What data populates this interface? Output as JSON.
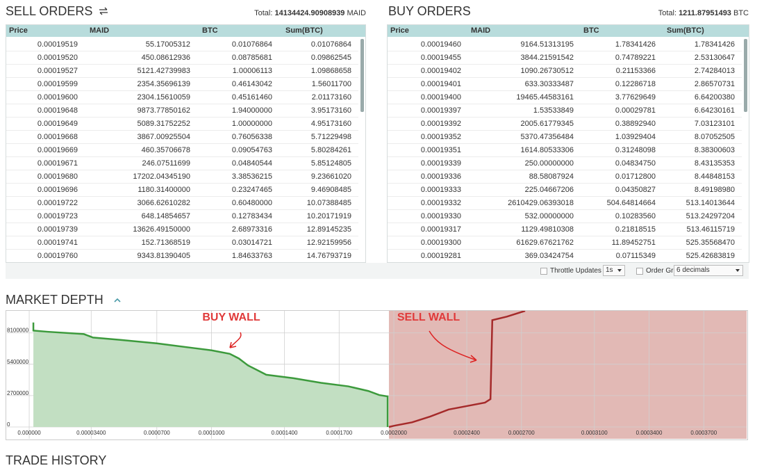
{
  "sell_orders": {
    "title": "SELL ORDERS",
    "total": {
      "label": "Total:",
      "value": "14134424.90908939",
      "unit": "MAID"
    },
    "columns": [
      "Price",
      "MAID",
      "BTC",
      "Sum(BTC)"
    ],
    "rows": [
      [
        "0.00019519",
        "55.17005312",
        "0.01076864",
        "0.01076864"
      ],
      [
        "0.00019520",
        "450.08612936",
        "0.08785681",
        "0.09862545"
      ],
      [
        "0.00019527",
        "5121.42739983",
        "1.00006113",
        "1.09868658"
      ],
      [
        "0.00019599",
        "2354.35696139",
        "0.46143042",
        "1.56011700"
      ],
      [
        "0.00019600",
        "2304.15610059",
        "0.45161460",
        "2.01173160"
      ],
      [
        "0.00019648",
        "9873.77850162",
        "1.94000000",
        "3.95173160"
      ],
      [
        "0.00019649",
        "5089.31752252",
        "1.00000000",
        "4.95173160"
      ],
      [
        "0.00019668",
        "3867.00925504",
        "0.76056338",
        "5.71229498"
      ],
      [
        "0.00019669",
        "460.35706678",
        "0.09054763",
        "5.80284261"
      ],
      [
        "0.00019671",
        "246.07511699",
        "0.04840544",
        "5.85124805"
      ],
      [
        "0.00019680",
        "17202.04345190",
        "3.38536215",
        "9.23661020"
      ],
      [
        "0.00019696",
        "1180.31400000",
        "0.23247465",
        "9.46908485"
      ],
      [
        "0.00019722",
        "3066.62610282",
        "0.60480000",
        "10.07388485"
      ],
      [
        "0.00019723",
        "648.14854657",
        "0.12783434",
        "10.20171919"
      ],
      [
        "0.00019739",
        "13626.49150000",
        "2.68973316",
        "12.89145235"
      ],
      [
        "0.00019741",
        "152.71368519",
        "0.03014721",
        "12.92159956"
      ],
      [
        "0.00019760",
        "9343.81390405",
        "1.84633763",
        "14.76793719"
      ]
    ]
  },
  "buy_orders": {
    "title": "BUY ORDERS",
    "total": {
      "label": "Total:",
      "value": "1211.87951493",
      "unit": "BTC"
    },
    "columns": [
      "Price",
      "MAID",
      "BTC",
      "Sum(BTC)"
    ],
    "rows": [
      [
        "0.00019460",
        "9164.51313195",
        "1.78341426",
        "1.78341426"
      ],
      [
        "0.00019455",
        "3844.21591542",
        "0.74789221",
        "2.53130647"
      ],
      [
        "0.00019402",
        "1090.26730512",
        "0.21153366",
        "2.74284013"
      ],
      [
        "0.00019401",
        "633.30333487",
        "0.12286718",
        "2.86570731"
      ],
      [
        "0.00019400",
        "19465.44583161",
        "3.77629649",
        "6.64200380"
      ],
      [
        "0.00019397",
        "1.53533849",
        "0.00029781",
        "6.64230161"
      ],
      [
        "0.00019392",
        "2005.61779345",
        "0.38892940",
        "7.03123101"
      ],
      [
        "0.00019352",
        "5370.47356484",
        "1.03929404",
        "8.07052505"
      ],
      [
        "0.00019351",
        "1614.80533306",
        "0.31248098",
        "8.38300603"
      ],
      [
        "0.00019339",
        "250.00000000",
        "0.04834750",
        "8.43135353"
      ],
      [
        "0.00019336",
        "88.58087924",
        "0.01712800",
        "8.44848153"
      ],
      [
        "0.00019333",
        "225.04667206",
        "0.04350827",
        "8.49198980"
      ],
      [
        "0.00019332",
        "2610429.06393018",
        "504.64814664",
        "513.14013644"
      ],
      [
        "0.00019330",
        "532.00000000",
        "0.10283560",
        "513.24297204"
      ],
      [
        "0.00019317",
        "1129.49810308",
        "0.21818515",
        "513.46115719"
      ],
      [
        "0.00019300",
        "61629.67621762",
        "11.89452751",
        "525.35568470"
      ],
      [
        "0.00019281",
        "369.03424754",
        "0.07115349",
        "525.42683819"
      ]
    ]
  },
  "controls": {
    "throttle_label": "Throttle Updates",
    "throttle_value": "1s",
    "grouping_label": "Order Grouping",
    "grouping_value": "6 decimals"
  },
  "chart_data": {
    "type": "area",
    "title": "MARKET DEPTH",
    "annotations": [
      "BUY WALL",
      "SELL WALL"
    ],
    "xlim": [
      -1.22e-05,
      0.0003935
    ],
    "ylim": [
      0,
      10000000
    ],
    "xticks": [
      {
        "value": 0,
        "label": "0.000000"
      },
      {
        "value": 3.4e-05,
        "label": "0.00003400"
      },
      {
        "value": 7e-05,
        "label": "0.0000700"
      },
      {
        "value": 0.0001,
        "label": "0.0001000"
      },
      {
        "value": 0.00014,
        "label": "0.0001400"
      },
      {
        "value": 0.00017,
        "label": "0.0001700"
      },
      {
        "value": 0.0002,
        "label": "0.0002000"
      },
      {
        "value": 0.00024,
        "label": "0.0002400"
      },
      {
        "value": 0.00027,
        "label": "0.0002700"
      },
      {
        "value": 0.00031,
        "label": "0.0003100"
      },
      {
        "value": 0.00034,
        "label": "0.0003400"
      },
      {
        "value": 0.00037,
        "label": "0.0003700"
      }
    ],
    "yticks": [
      0,
      2700000,
      5400000,
      8100000
    ],
    "grid": true,
    "series": [
      {
        "color": "#3c9a3c",
        "fill": "#c2dfc2",
        "x": [
          0.0001966,
          0.0001966,
          0.000192,
          0.000186,
          0.000175,
          0.00016,
          0.000145,
          0.00013,
          0.000125,
          0.00012,
          0.000115,
          0.00011,
          0.0001,
          9e-05,
          7e-05,
          5e-05,
          3.5e-05,
          3e-05,
          1e-05,
          2.3e-06,
          2.3e-06
        ],
        "values": [
          0,
          2630000,
          2750000,
          3100000,
          3500000,
          3800000,
          4200000,
          4500000,
          4900000,
          5300000,
          5900000,
          6300000,
          6600000,
          6800000,
          7200000,
          7500000,
          7700000,
          8000000,
          8200000,
          8300000,
          9000000
        ]
      },
      {
        "color": "#a52a2a",
        "fill": "#e2b9b5",
        "x": [
          0.0001973,
          0.0002,
          0.00021,
          0.00022,
          0.00023,
          0.00024,
          0.00025,
          0.000253,
          0.000254,
          0.000262,
          0.000272
        ],
        "values": [
          0,
          100000,
          400000,
          900000,
          1500000,
          1800000,
          2100000,
          2400000,
          9200000,
          9500000,
          10000000
        ]
      }
    ]
  },
  "trade_history": {
    "title": "TRADE HISTORY"
  }
}
